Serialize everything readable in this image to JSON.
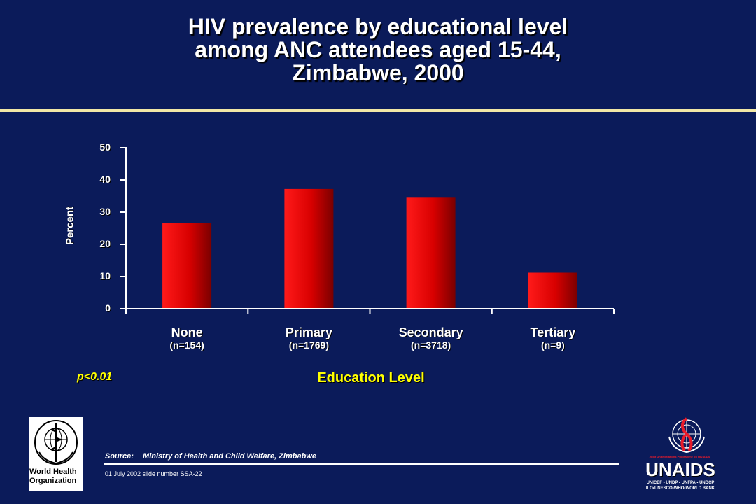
{
  "title_lines": [
    "HIV prevalence by educational level",
    "among ANC attendees aged 15-44,",
    "Zimbabwe, 2000"
  ],
  "chart_data": {
    "type": "bar",
    "categories": [
      "None",
      "Primary",
      "Secondary",
      "Tertiary"
    ],
    "category_counts": [
      "(n=154)",
      "(n=1769)",
      "(n=3718)",
      "(n=9)"
    ],
    "values": [
      26.7,
      37.2,
      34.5,
      11.2
    ],
    "ylabel": "Percent",
    "xlabel": "Education Level",
    "ylim": [
      0,
      50
    ],
    "yticks": [
      "0",
      "10",
      "20",
      "30",
      "40",
      "50"
    ],
    "grid": false,
    "annotation": "p<0.01",
    "bar_color": "#e00000"
  },
  "footer": {
    "source_label": "Source:",
    "source_text": "Ministry of Health and Child Welfare, Zimbabwe",
    "slide_number": "01 July 2002 slide number SSA-22"
  },
  "logos": {
    "who_text_line1": "World Health",
    "who_text_line2": "Organization",
    "unaids_tagline": "Joint United Nations Programme on HIV/AIDS",
    "unaids_word": "UNAIDS",
    "unaids_partners_line1": "UNICEF • UNDP • UNFPA • UNDCP",
    "unaids_partners_line2": "ILO•UNESCO•WHO•WORLD BANK"
  }
}
